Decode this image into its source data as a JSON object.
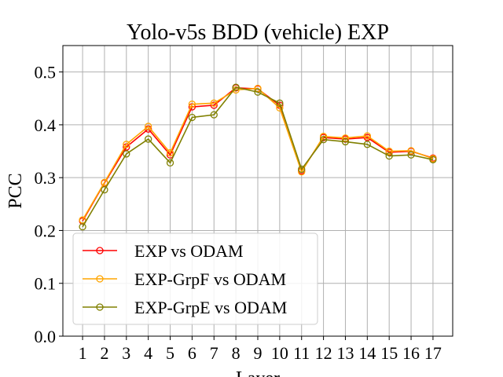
{
  "chart_data": {
    "type": "line",
    "title": "Yolo-v5s BDD (vehicle) EXP",
    "xlabel": "Layer",
    "ylabel": "PCC",
    "x": [
      1,
      2,
      3,
      4,
      5,
      6,
      7,
      8,
      9,
      10,
      11,
      12,
      13,
      14,
      15,
      16,
      17
    ],
    "xtick_labels": [
      "1",
      "2",
      "3",
      "4",
      "5",
      "6",
      "7",
      "8",
      "9",
      "10",
      "11",
      "12",
      "13",
      "14",
      "15",
      "16",
      "17"
    ],
    "xlim": [
      0.1,
      17.9
    ],
    "ylim": [
      0.0,
      0.55
    ],
    "yticks": [
      0.0,
      0.1,
      0.2,
      0.3,
      0.4,
      0.5
    ],
    "ytick_labels": [
      "0.0",
      "0.1",
      "0.2",
      "0.3",
      "0.4",
      "0.5"
    ],
    "grid": true,
    "legend_position": "lower-left",
    "series": [
      {
        "name": "EXP vs ODAM",
        "color": "#ff0000",
        "values": [
          0.218,
          0.29,
          0.358,
          0.392,
          0.343,
          0.434,
          0.437,
          0.47,
          0.468,
          0.437,
          0.313,
          0.376,
          0.373,
          0.376,
          0.348,
          0.35,
          0.337
        ]
      },
      {
        "name": "EXP-GrpF vs ODAM",
        "color": "#ffa500",
        "values": [
          0.22,
          0.291,
          0.363,
          0.397,
          0.347,
          0.439,
          0.441,
          0.466,
          0.469,
          0.432,
          0.311,
          0.378,
          0.375,
          0.379,
          0.35,
          0.351,
          0.336
        ]
      },
      {
        "name": "EXP-GrpE vs ODAM",
        "color": "#808000",
        "values": [
          0.207,
          0.277,
          0.345,
          0.373,
          0.328,
          0.414,
          0.419,
          0.471,
          0.462,
          0.441,
          0.316,
          0.372,
          0.368,
          0.363,
          0.341,
          0.343,
          0.334
        ]
      }
    ]
  }
}
